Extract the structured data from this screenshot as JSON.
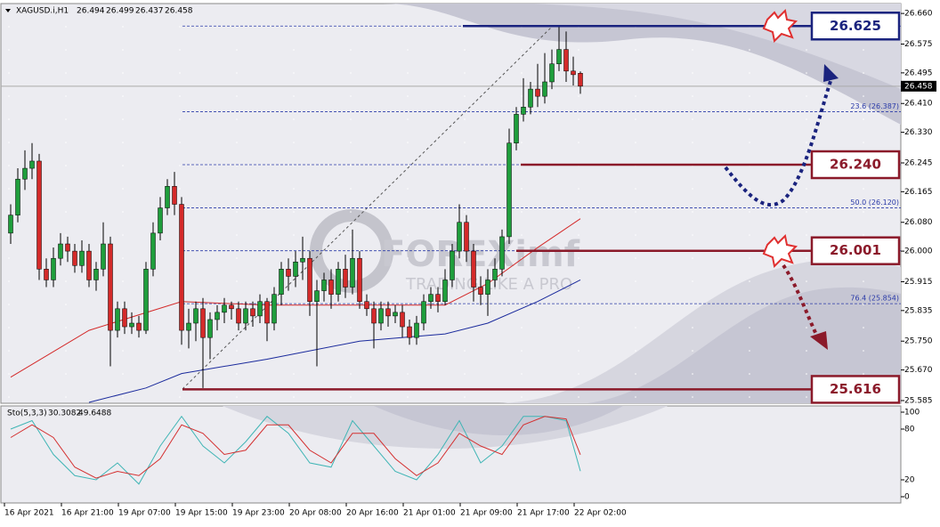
{
  "chart_data": {
    "type": "candlestick",
    "symbol": "XAGUSD.i,H1",
    "up_color": "#1f9e3c",
    "down_color": "#d42a2a",
    "open": [
      26.05,
      26.1,
      26.2,
      26.23,
      26.25,
      25.95,
      25.92,
      25.98,
      26.02,
      26.0,
      25.96,
      26.0,
      25.92,
      25.95,
      26.02,
      25.78,
      25.84,
      25.79,
      25.8,
      25.78,
      25.95,
      26.05,
      26.12,
      26.18,
      26.13,
      25.78,
      25.8,
      25.84,
      25.76,
      25.81,
      25.83,
      25.85,
      25.84,
      25.8,
      25.84,
      25.82,
      25.86,
      25.8,
      25.88,
      25.95,
      25.93,
      25.97,
      25.98,
      25.86,
      25.89,
      25.92,
      25.88,
      25.95,
      25.9,
      25.98,
      25.86,
      25.84,
      25.8,
      25.84,
      25.82,
      25.83,
      25.79,
      25.76,
      25.8,
      25.86,
      25.88,
      25.86,
      25.92,
      26.0,
      26.08,
      26.0,
      25.9,
      25.88,
      25.92,
      25.95,
      26.04,
      26.3,
      26.38,
      26.4,
      26.45,
      26.43,
      26.47,
      26.52,
      26.56,
      26.5,
      26.494
    ],
    "high": [
      26.13,
      26.23,
      26.28,
      26.3,
      26.27,
      25.98,
      26.01,
      26.05,
      26.04,
      26.02,
      26.03,
      26.02,
      25.97,
      26.08,
      26.04,
      25.86,
      25.86,
      25.83,
      25.82,
      25.97,
      26.08,
      26.15,
      26.2,
      26.22,
      26.15,
      25.84,
      25.86,
      25.87,
      25.83,
      25.85,
      25.87,
      25.86,
      25.86,
      25.86,
      25.86,
      25.88,
      25.87,
      25.9,
      25.97,
      25.98,
      26.0,
      26.04,
      26.0,
      25.92,
      25.94,
      25.95,
      25.97,
      25.99,
      26.06,
      26.0,
      25.88,
      25.86,
      25.86,
      25.86,
      25.85,
      25.85,
      25.81,
      25.82,
      25.88,
      25.9,
      25.9,
      25.95,
      26.02,
      26.13,
      26.1,
      26.02,
      25.93,
      25.95,
      25.98,
      26.06,
      26.34,
      26.4,
      26.48,
      26.47,
      26.52,
      26.55,
      26.56,
      26.625,
      26.61,
      26.54,
      26.499
    ],
    "low": [
      26.02,
      26.08,
      26.17,
      26.2,
      25.92,
      25.9,
      25.9,
      25.96,
      25.97,
      25.94,
      25.94,
      25.9,
      25.89,
      25.93,
      25.68,
      25.76,
      25.77,
      25.77,
      25.76,
      25.77,
      25.93,
      26.03,
      26.1,
      26.1,
      25.74,
      25.73,
      25.75,
      25.62,
      25.7,
      25.78,
      25.8,
      25.81,
      25.78,
      25.78,
      25.79,
      25.8,
      25.75,
      25.78,
      25.85,
      25.89,
      25.9,
      25.92,
      25.82,
      25.68,
      25.86,
      25.84,
      25.86,
      25.87,
      25.88,
      25.84,
      25.82,
      25.73,
      25.78,
      25.79,
      25.8,
      25.76,
      25.74,
      25.74,
      25.78,
      25.84,
      25.83,
      25.85,
      25.9,
      25.98,
      25.97,
      25.86,
      25.85,
      25.82,
      25.9,
      25.93,
      26.02,
      26.28,
      26.36,
      26.38,
      26.4,
      26.41,
      26.45,
      26.5,
      26.47,
      26.46,
      26.437
    ],
    "close": [
      26.1,
      26.2,
      26.23,
      26.25,
      25.95,
      25.92,
      25.98,
      26.02,
      26.0,
      25.96,
      26.0,
      25.92,
      25.95,
      26.02,
      25.78,
      25.84,
      25.79,
      25.8,
      25.78,
      25.95,
      26.05,
      26.12,
      26.18,
      26.13,
      25.78,
      25.8,
      25.84,
      25.76,
      25.81,
      25.83,
      25.85,
      25.84,
      25.8,
      25.84,
      25.82,
      25.86,
      25.8,
      25.88,
      25.95,
      25.93,
      25.97,
      25.98,
      25.86,
      25.89,
      25.92,
      25.88,
      25.95,
      25.9,
      25.98,
      25.86,
      25.84,
      25.8,
      25.84,
      25.82,
      25.83,
      25.79,
      25.76,
      25.8,
      25.86,
      25.88,
      25.86,
      25.92,
      26.0,
      26.08,
      26.0,
      25.9,
      25.88,
      25.92,
      25.95,
      26.04,
      26.3,
      26.38,
      26.4,
      26.45,
      26.43,
      26.47,
      26.52,
      26.56,
      26.5,
      26.49,
      26.458
    ],
    "moving_averages": [
      {
        "color": "#d42a2a",
        "x": [
          0,
          11,
          24,
          36,
          49,
          61,
          67,
          74,
          80
        ],
        "values": [
          25.65,
          25.78,
          25.86,
          25.85,
          25.85,
          25.85,
          25.91,
          26.01,
          26.09
        ]
      },
      {
        "color": "#1a2a9c",
        "x": [
          11,
          19,
          24,
          36,
          49,
          61,
          67,
          74,
          80
        ],
        "values": [
          25.58,
          25.62,
          25.66,
          25.7,
          25.75,
          25.77,
          25.8,
          25.86,
          25.92
        ]
      }
    ],
    "ylim": [
      25.58,
      26.685
    ],
    "yticks": [
      {
        "value": 26.66,
        "label": "26.660"
      },
      26.575,
      26.495,
      {
        "value": 26.41,
        "label": "26.410"
      },
      {
        "value": 26.33,
        "label": "26.330"
      },
      26.245,
      26.165,
      {
        "value": 26.08,
        "label": "26.080"
      },
      {
        "value": 26,
        "label": "26.000"
      },
      25.915,
      25.835,
      {
        "value": 25.75,
        "label": "25.750"
      },
      {
        "value": 25.67,
        "label": "25.670"
      },
      25.585
    ],
    "fib_color": "#2a3aa8",
    "fib_levels": [
      26.625,
      {
        "value": 26.387,
        "label": "23.6 (26.387)"
      },
      26.24,
      {
        "value": 26.12,
        "label": "50.0 (26.120)"
      },
      26.001,
      {
        "value": 25.854,
        "label": "76.4 (25.854)"
      }
    ],
    "levels": [
      {
        "value": 26.625,
        "color": "#1a237e"
      },
      {
        "value": {
          "value": 26.24,
          "label": "26.240"
        },
        "color": "#8b1a2a"
      },
      {
        "value": 26.001,
        "color": "#8b1a2a"
      },
      {
        "value": 25.616,
        "color": "#8b1a2a"
      }
    ],
    "watermark": "FOREXimf",
    "watermark_tagline": "TRADING LIKE A PRO",
    "x_labels": [
      "16 Apr 2021",
      "16 Apr 21:00",
      "19 Apr 07:00",
      "19 Apr 15:00",
      "19 Apr 23:00",
      "20 Apr 08:00",
      "20 Apr 16:00",
      "21 Apr 01:00",
      "21 Apr 09:00",
      "21 Apr 17:00",
      "22 Apr 02:00"
    ],
    "indicator": {
      "name": "Sto(5,3,3)",
      "ylim": [
        0,
        100
      ],
      "yticks": [
        100,
        80,
        20,
        0
      ],
      "series": [
        {
          "color": "#3fb5b5",
          "x": [
            0,
            3,
            6,
            9,
            12,
            15,
            18,
            21,
            24,
            27,
            30,
            33,
            36,
            39,
            42,
            45,
            48,
            51,
            54,
            57,
            60,
            63,
            66,
            69,
            72,
            75,
            78,
            80
          ],
          "values": [
            80,
            90,
            50,
            25,
            20,
            40,
            15,
            60,
            95,
            60,
            40,
            65,
            95,
            75,
            40,
            35,
            90,
            60,
            30,
            20,
            50,
            90,
            40,
            60,
            95,
            95,
            90,
            30.3082
          ]
        },
        {
          "color": "#d43030",
          "x": [
            0,
            3,
            6,
            9,
            12,
            15,
            18,
            21,
            24,
            27,
            30,
            33,
            36,
            39,
            42,
            45,
            48,
            51,
            54,
            57,
            60,
            63,
            66,
            69,
            72,
            75,
            78,
            80
          ],
          "values": [
            70,
            85,
            70,
            35,
            22,
            30,
            25,
            45,
            85,
            75,
            50,
            55,
            85,
            85,
            55,
            40,
            75,
            75,
            45,
            25,
            40,
            75,
            60,
            50,
            85,
            95,
            92,
            49.6488
          ]
        }
      ]
    }
  }
}
